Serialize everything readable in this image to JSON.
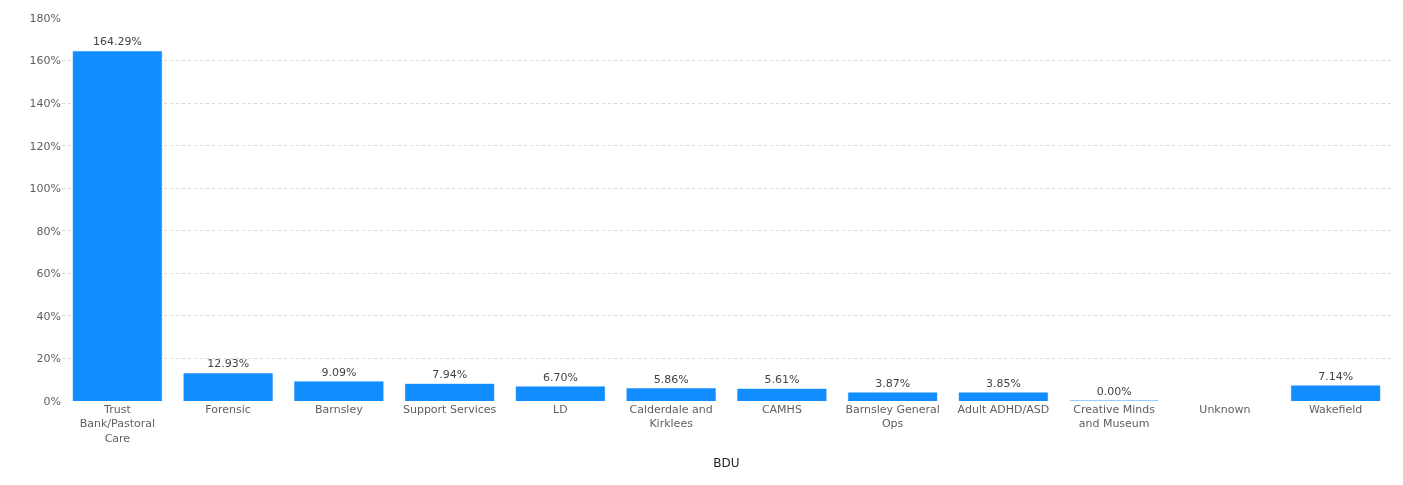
{
  "chart_data": {
    "type": "bar",
    "xlabel": "BDU",
    "categories": [
      "Trust Bank/Pastoral Care",
      "Forensic",
      "Barnsley",
      "Support Services",
      "LD",
      "Calderdale and Kirklees",
      "CAMHS",
      "Barnsley General Ops",
      "Adult ADHD/ASD",
      "Creative Minds and Museum",
      "Unknown",
      "Wakefield"
    ],
    "values": [
      164.29,
      12.93,
      9.09,
      7.94,
      6.7,
      5.86,
      5.61,
      3.87,
      3.85,
      0.0,
      null,
      7.14
    ],
    "value_labels": [
      "164.29%",
      "12.93%",
      "9.09%",
      "7.94%",
      "6.70%",
      "5.86%",
      "5.61%",
      "3.87%",
      "3.85%",
      "0.00%",
      null,
      "7.14%"
    ],
    "color": "#118dff",
    "ylim": [
      0,
      180
    ],
    "yticks": [
      {
        "value": 0,
        "label": "0%"
      },
      {
        "value": 20,
        "label": "20%"
      },
      {
        "value": 40,
        "label": "40%"
      },
      {
        "value": 60,
        "label": "60%"
      },
      {
        "value": 80,
        "label": "80%"
      },
      {
        "value": 100,
        "label": "100%"
      },
      {
        "value": 120,
        "label": "120%"
      },
      {
        "value": 140,
        "label": "140%"
      },
      {
        "value": 160,
        "label": "160%"
      },
      {
        "value": 180,
        "label": "180%"
      }
    ],
    "grid": "y"
  }
}
